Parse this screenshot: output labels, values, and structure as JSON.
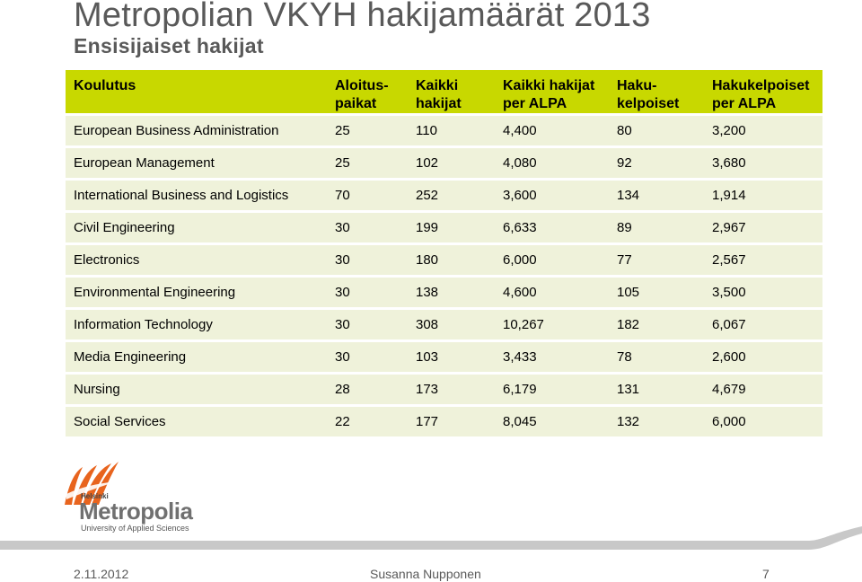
{
  "title": "Metropolian VKYH hakijamäärät 2013",
  "subtitle": "Ensisijaiset hakijat",
  "table": {
    "headers": [
      {
        "line1": "Koulutus",
        "line2": ""
      },
      {
        "line1": "Aloitus-",
        "line2": "paikat"
      },
      {
        "line1": "Kaikki",
        "line2": "hakijat"
      },
      {
        "line1": "Kaikki hakijat",
        "line2": "per ALPA"
      },
      {
        "line1": "Haku-",
        "line2": "kelpoiset"
      },
      {
        "line1": "Hakukelpoiset",
        "line2": "per ALPA"
      }
    ],
    "rows": [
      [
        "European Business Administration",
        "25",
        "110",
        "4,400",
        "80",
        "3,200"
      ],
      [
        "European Management",
        "25",
        "102",
        "4,080",
        "92",
        "3,680"
      ],
      [
        "International Business and Logistics",
        "70",
        "252",
        "3,600",
        "134",
        "1,914"
      ],
      [
        "Civil Engineering",
        "30",
        "199",
        "6,633",
        "89",
        "2,967"
      ],
      [
        "Electronics",
        "30",
        "180",
        "6,000",
        "77",
        "2,567"
      ],
      [
        "Environmental Engineering",
        "30",
        "138",
        "4,600",
        "105",
        "3,500"
      ],
      [
        "Information Technology",
        "30",
        "308",
        "10,267",
        "182",
        "6,067"
      ],
      [
        "Media Engineering",
        "30",
        "103",
        "3,433",
        "78",
        "2,600"
      ],
      [
        "Nursing",
        "28",
        "173",
        "6,179",
        "131",
        "4,679"
      ],
      [
        "Social Services",
        "22",
        "177",
        "8,045",
        "132",
        "6,000"
      ]
    ]
  },
  "logo": {
    "helsinki": "Helsinki",
    "name": "Metropolia",
    "tagline": "University of Applied Sciences"
  },
  "footer": {
    "date": "2.11.2012",
    "author": "Susanna Nupponen",
    "page": "7"
  },
  "colors": {
    "header_bg": "#c8d800",
    "row_bg": "#eff2da",
    "title": "#595959",
    "logo_orange": "#e8641e"
  }
}
